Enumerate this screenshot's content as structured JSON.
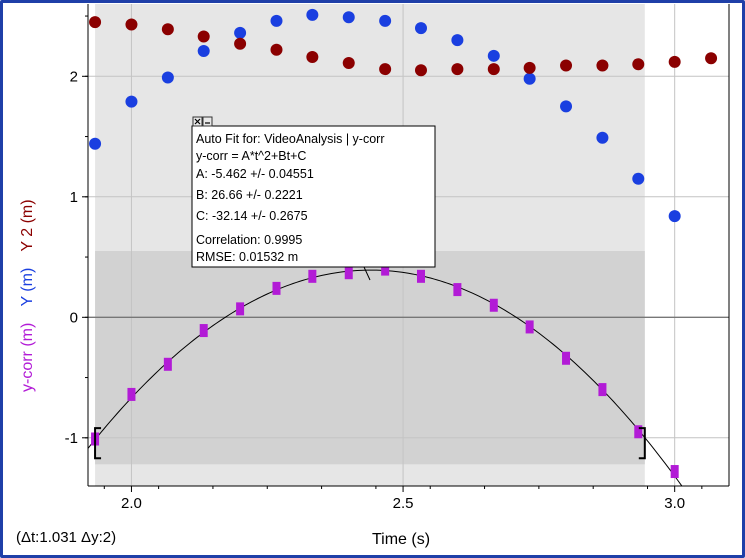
{
  "colors": {
    "series_y": "#1a3fe0",
    "series_y2": "#8b0000",
    "series_ycorr": "#b21bd6",
    "fit_curve": "#000000",
    "selection_light": "#e6e6e6",
    "selection_dark": "#d2d2d2",
    "frame": "#1f3fa8"
  },
  "chart_data": {
    "type": "scatter",
    "xlabel": "Time (s)",
    "ylabels": [
      "y-corr (m)",
      "Y (m)",
      "Y 2 (m)"
    ],
    "xlim": [
      1.92,
      3.1
    ],
    "ylim": [
      -1.4,
      2.6
    ],
    "x_ticks": [
      "2.0",
      "2.5",
      "3.0"
    ],
    "x_tick_values": [
      2.0,
      2.5,
      3.0
    ],
    "y_ticks": [
      "-1",
      "0",
      "1",
      "2"
    ],
    "y_tick_values": [
      -1,
      0,
      1,
      2
    ],
    "grid": true,
    "series": [
      {
        "name": "Y",
        "unit": "m",
        "marker": "circle",
        "x": [
          1.933,
          2.0,
          2.067,
          2.133,
          2.2,
          2.267,
          2.333,
          2.4,
          2.467,
          2.533,
          2.6,
          2.667,
          2.733,
          2.8,
          2.867,
          2.933,
          3.0
        ],
        "y": [
          1.44,
          1.79,
          1.99,
          2.21,
          2.36,
          2.46,
          2.51,
          2.49,
          2.46,
          2.4,
          2.3,
          2.17,
          1.98,
          1.75,
          1.49,
          1.15,
          0.84
        ]
      },
      {
        "name": "Y 2",
        "unit": "m",
        "marker": "circle",
        "x": [
          1.933,
          2.0,
          2.067,
          2.133,
          2.2,
          2.267,
          2.333,
          2.4,
          2.467,
          2.533,
          2.6,
          2.667,
          2.733,
          2.8,
          2.867,
          2.933,
          3.0,
          3.067
        ],
        "y": [
          2.45,
          2.43,
          2.39,
          2.33,
          2.27,
          2.22,
          2.16,
          2.11,
          2.06,
          2.05,
          2.06,
          2.06,
          2.07,
          2.09,
          2.09,
          2.1,
          2.12,
          2.15
        ]
      },
      {
        "name": "y-corr",
        "unit": "m",
        "marker": "rect",
        "x": [
          1.933,
          2.0,
          2.067,
          2.133,
          2.2,
          2.267,
          2.333,
          2.4,
          2.467,
          2.533,
          2.6,
          2.667,
          2.733,
          2.8,
          2.867,
          2.933,
          3.0
        ],
        "y": [
          -1.01,
          -0.64,
          -0.39,
          -0.11,
          0.07,
          0.24,
          0.34,
          0.37,
          0.4,
          0.34,
          0.23,
          0.1,
          -0.08,
          -0.34,
          -0.6,
          -0.95,
          -1.28
        ]
      }
    ],
    "fit": {
      "series": "y-corr",
      "equation": "A*t^2+Bt+C",
      "A": -5.462,
      "B": 26.66,
      "C": -32.14,
      "x_range": [
        1.92,
        3.1
      ]
    },
    "selection": {
      "x_range": [
        1.933,
        2.945
      ],
      "y_range": [
        -1.22,
        0.55
      ]
    }
  },
  "fit_box": {
    "lines": [
      "Auto Fit for: VideoAnalysis | y-corr",
      "y-corr = A*t^2+Bt+C",
      "A: -5.462 +/- 0.04551",
      "B: 26.66 +/- 0.2221",
      "C: -32.14 +/- 0.2675",
      "Correlation: 0.9995",
      "RMSE: 0.01532 m"
    ],
    "close_icon": "close-icon",
    "minimize_icon": "minimize-icon"
  },
  "readout": "(Δt:1.031 Δy:2)"
}
